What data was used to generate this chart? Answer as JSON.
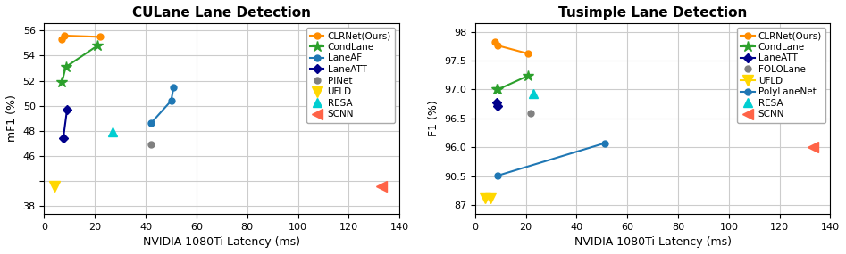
{
  "culane": {
    "title": "CULane Lane Detection",
    "xlabel": "NVIDIA 1080Ti Latency (ms)",
    "ylabel": "mF1 (%)",
    "ytick_display": [
      0,
      1,
      2,
      3,
      4,
      5,
      6,
      7
    ],
    "ytick_labels": [
      "38",
      "",
      "46",
      "48",
      "50",
      "52",
      "54",
      "56"
    ],
    "ytick_data": [
      38,
      39,
      46,
      48,
      50,
      52,
      54,
      56
    ],
    "ylim_display": [
      -0.3,
      7.3
    ],
    "xlim": [
      0,
      140
    ],
    "xticks": [
      0,
      20,
      40,
      60,
      80,
      100,
      120,
      140
    ],
    "series": [
      {
        "name": "CLRNet(Ours)",
        "color": "#FF8C00",
        "marker": "o",
        "points_data": [
          [
            7,
            55.3
          ],
          [
            8,
            55.6
          ],
          [
            22,
            55.5
          ]
        ],
        "connected": true
      },
      {
        "name": "CondLane",
        "color": "#2ca02c",
        "marker": "*",
        "points_data": [
          [
            7,
            51.9
          ],
          [
            8.5,
            53.1
          ],
          [
            21,
            54.8
          ]
        ],
        "connected": true
      },
      {
        "name": "LaneAF",
        "color": "#1f77b4",
        "marker": "o",
        "points_data": [
          [
            42,
            48.6
          ],
          [
            50,
            50.4
          ],
          [
            51,
            51.5
          ]
        ],
        "connected": true
      },
      {
        "name": "LaneATT",
        "color": "#00008B",
        "marker": "D",
        "points_data": [
          [
            7.5,
            47.4
          ],
          [
            9,
            49.7
          ]
        ],
        "connected": true
      },
      {
        "name": "PINet",
        "color": "#808080",
        "marker": "o",
        "points_data": [
          [
            42,
            46.9
          ]
        ],
        "connected": false
      },
      {
        "name": "UFLD",
        "color": "#FFD700",
        "marker": "v",
        "points_data": [
          [
            4,
            38.8
          ]
        ],
        "connected": false
      },
      {
        "name": "RESA",
        "color": "#00CED1",
        "marker": "^",
        "points_data": [
          [
            27,
            47.9
          ]
        ],
        "connected": false
      },
      {
        "name": "SCNN",
        "color": "#FF6347",
        "marker": "<",
        "points_data": [
          [
            133,
            38.8
          ]
        ],
        "connected": false
      }
    ]
  },
  "tusimple": {
    "title": "Tusimple Lane Detection",
    "xlabel": "NVIDIA 1080Ti Latency (ms)",
    "ylabel": "F1 (%)",
    "ytick_display": [
      0,
      1,
      2,
      3,
      4,
      5,
      6
    ],
    "ytick_labels": [
      "87",
      "90.5",
      "96.0",
      "96.5",
      "97.0",
      "97.5",
      "98"
    ],
    "ytick_data": [
      87,
      90.5,
      96.0,
      96.5,
      97.0,
      97.5,
      98
    ],
    "ylim_display": [
      -0.3,
      6.3
    ],
    "xlim": [
      0,
      140
    ],
    "xticks": [
      0,
      20,
      40,
      60,
      80,
      100,
      120,
      140
    ],
    "series": [
      {
        "name": "CLRNet(Ours)",
        "color": "#FF8C00",
        "marker": "o",
        "points_data": [
          [
            8,
            97.82
          ],
          [
            9,
            97.76
          ],
          [
            21,
            97.62
          ]
        ],
        "connected": true
      },
      {
        "name": "CondLane",
        "color": "#2ca02c",
        "marker": "*",
        "points_data": [
          [
            8.5,
            97.01
          ],
          [
            9,
            97.0
          ],
          [
            21,
            97.24
          ]
        ],
        "connected": true
      },
      {
        "name": "LaneATT",
        "color": "#00008B",
        "marker": "D",
        "points_data": [
          [
            8.5,
            96.77
          ],
          [
            9,
            96.71
          ]
        ],
        "connected": true
      },
      {
        "name": "FOLOLane",
        "color": "#808080",
        "marker": "o",
        "points_data": [
          [
            22,
            96.59
          ]
        ],
        "connected": false
      },
      {
        "name": "UFLD",
        "color": "#FFD700",
        "marker": "v",
        "points_data": [
          [
            4,
            87.87
          ],
          [
            6,
            87.87
          ]
        ],
        "connected": true
      },
      {
        "name": "PolyLaneNet",
        "color": "#1f77b4",
        "marker": "o",
        "points_data": [
          [
            9,
            90.62
          ],
          [
            51,
            96.07
          ]
        ],
        "connected": true
      },
      {
        "name": "RESA",
        "color": "#00CED1",
        "marker": "^",
        "points_data": [
          [
            23,
            96.93
          ]
        ],
        "connected": false
      },
      {
        "name": "SCNN",
        "color": "#FF6347",
        "marker": "<",
        "points_data": [
          [
            133,
            96.0
          ]
        ],
        "connected": false
      }
    ]
  },
  "legend_order_culane": [
    "CLRNet(Ours)",
    "CondLane",
    "LaneAF",
    "LaneATT",
    "PINet",
    "UFLD",
    "RESA",
    "SCNN"
  ],
  "legend_order_tusimple": [
    "CLRNet(Ours)",
    "CondLane",
    "LaneATT",
    "FOLOLane",
    "UFLD",
    "PolyLaneNet",
    "RESA",
    "SCNN"
  ]
}
